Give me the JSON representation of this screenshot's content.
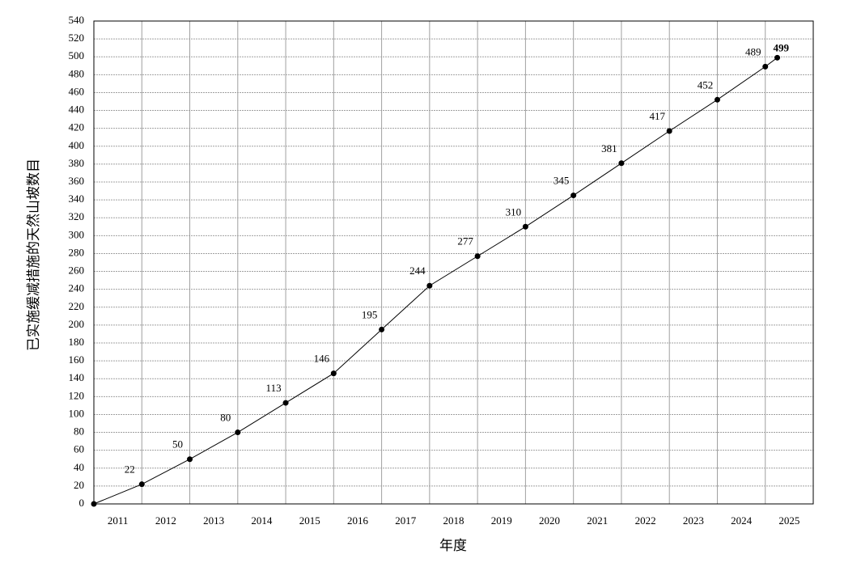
{
  "chart_data": {
    "type": "line",
    "x_label": "年度",
    "y_label": "已实施缓减措施的天然山坡数目",
    "x": [
      2011,
      2012,
      2013,
      2014,
      2015,
      2016,
      2017,
      2018,
      2019,
      2020,
      2021,
      2022,
      2023,
      2024,
      2025,
      2025.25
    ],
    "values": [
      0,
      22,
      50,
      80,
      113,
      146,
      195,
      244,
      277,
      310,
      345,
      381,
      417,
      452,
      489,
      499
    ],
    "color": "#000000",
    "xlim": [
      2011,
      2026
    ],
    "xticks": [
      {
        "value": 2011.5,
        "label": "2011"
      },
      {
        "value": 2012.5,
        "label": "2012"
      },
      {
        "value": 2013.5,
        "label": "2013"
      },
      {
        "value": 2014.5,
        "label": "2014"
      },
      {
        "value": 2015.5,
        "label": "2015"
      },
      {
        "value": 2016.5,
        "label": "2016"
      },
      {
        "value": 2017.5,
        "label": "2017"
      },
      {
        "value": 2018.5,
        "label": "2018"
      },
      {
        "value": 2019.5,
        "label": "2019"
      },
      {
        "value": 2020.5,
        "label": "2020"
      },
      {
        "value": 2021.5,
        "label": "2021"
      },
      {
        "value": 2022.5,
        "label": "2022"
      },
      {
        "value": 2023.5,
        "label": "2023"
      },
      {
        "value": 2024.5,
        "label": "2024"
      },
      {
        "value": 2025.5,
        "label": "2025"
      }
    ],
    "ylim": [
      0,
      540
    ],
    "yticks": [
      0,
      20,
      40,
      60,
      80,
      100,
      120,
      140,
      160,
      180,
      200,
      220,
      240,
      260,
      280,
      300,
      320,
      340,
      360,
      380,
      400,
      420,
      440,
      460,
      480,
      500,
      520,
      540
    ],
    "grid": true
  }
}
